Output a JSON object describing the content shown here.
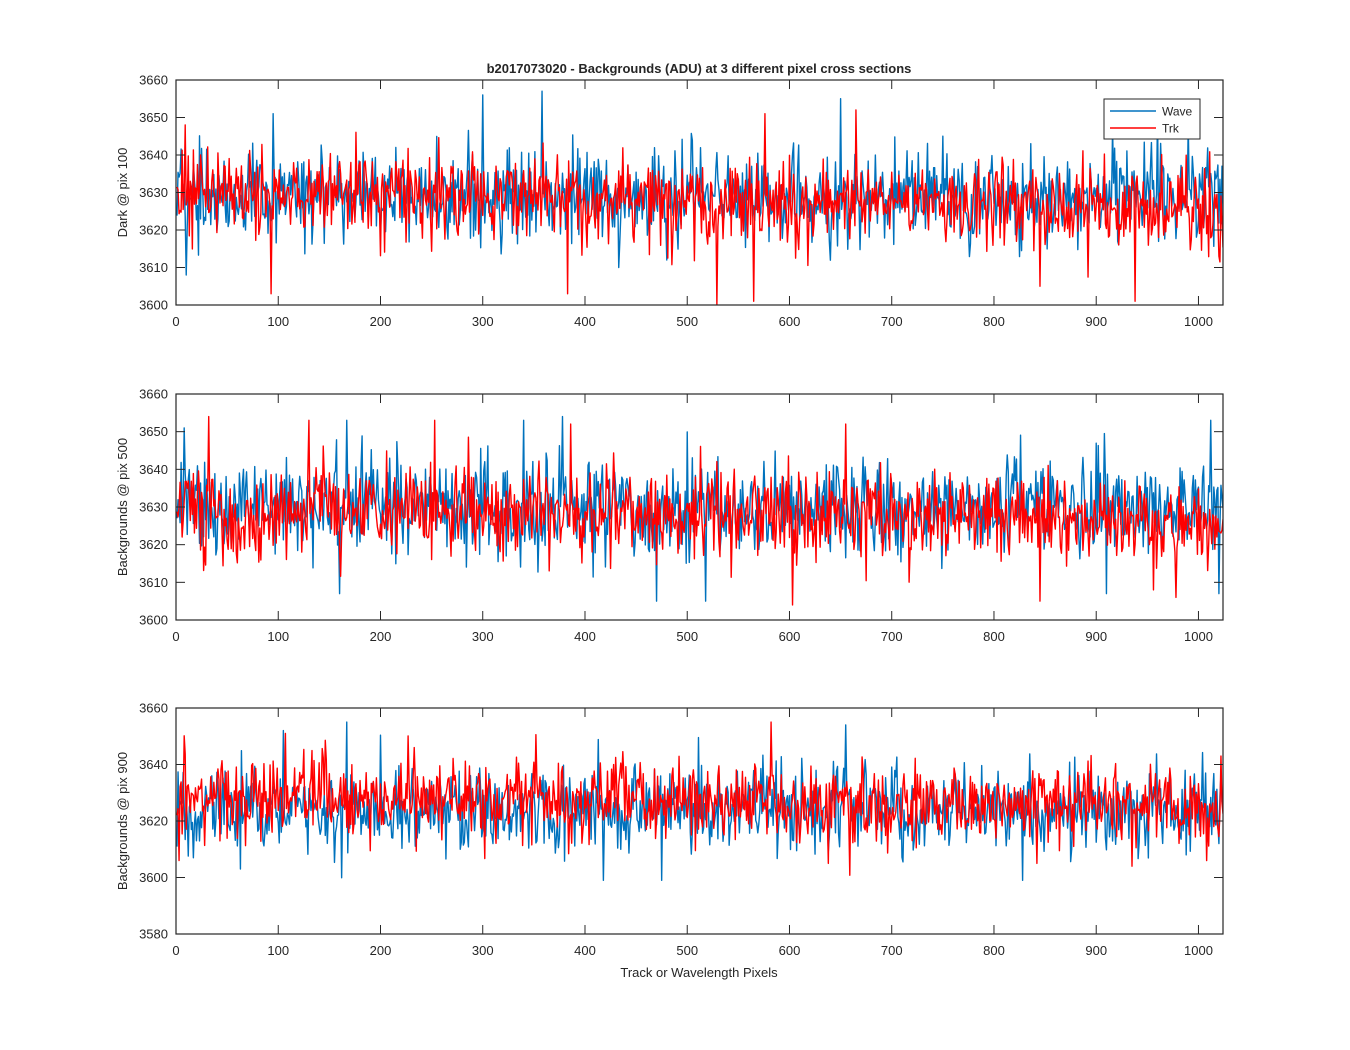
{
  "figure": {
    "title": "b2017073020 - Backgrounds (ADU) at 3 different pixel cross sections",
    "xlabel": "Track or Wavelength Pixels"
  },
  "legend": {
    "placement": "top-right of first panel",
    "entries": [
      {
        "name": "Wave",
        "color": "#0072BD"
      },
      {
        "name": "Trk",
        "color": "#FF0000"
      }
    ]
  },
  "chart_data": [
    {
      "type": "line",
      "ylabel": "Dark @ pix 100",
      "xlim": [
        0,
        1024
      ],
      "ylim": [
        3600,
        3660
      ],
      "xticks": [
        0,
        100,
        200,
        300,
        400,
        500,
        600,
        700,
        800,
        900,
        1000
      ],
      "yticks": [
        3600,
        3610,
        3620,
        3630,
        3640,
        3650,
        3660
      ],
      "x_range": [
        1,
        1024
      ],
      "series": [
        {
          "name": "Wave",
          "color": "#0072BD",
          "mean": 3629,
          "noise_sd": 6.0,
          "extremes": [
            [
              10,
              3608
            ],
            [
              95,
              3651
            ],
            [
              300,
              3656
            ],
            [
              358,
              3657
            ],
            [
              433,
              3610
            ],
            [
              480,
              3612
            ],
            [
              650,
              3655
            ],
            [
              750,
              3645
            ],
            [
              960,
              3652
            ],
            [
              990,
              3648
            ]
          ]
        },
        {
          "name": "Trk",
          "color": "#FF0000",
          "mean": 3630,
          "noise_sd": 5.5,
          "trend_end": -4,
          "extremes": [
            [
              9,
              3648
            ],
            [
              93,
              3603
            ],
            [
              383,
              3603
            ],
            [
              529,
              3600
            ],
            [
              565,
              3601
            ],
            [
              576,
              3651
            ],
            [
              665,
              3652
            ],
            [
              845,
              3605
            ],
            [
              938,
              3601
            ],
            [
              1020,
              3613
            ]
          ]
        }
      ]
    },
    {
      "type": "line",
      "ylabel": "Backgrounds @ pix 500",
      "xlim": [
        0,
        1024
      ],
      "ylim": [
        3600,
        3660
      ],
      "xticks": [
        0,
        100,
        200,
        300,
        400,
        500,
        600,
        700,
        800,
        900,
        1000
      ],
      "yticks": [
        3600,
        3610,
        3620,
        3630,
        3640,
        3650,
        3660
      ],
      "x_range": [
        1,
        1024
      ],
      "series": [
        {
          "name": "Wave",
          "color": "#0072BD",
          "mean": 3630,
          "noise_sd": 6.5,
          "extremes": [
            [
              8,
              3651
            ],
            [
              160,
              3607
            ],
            [
              167,
              3653
            ],
            [
              340,
              3653
            ],
            [
              378,
              3654
            ],
            [
              470,
              3605
            ],
            [
              518,
              3605
            ],
            [
              910,
              3607
            ],
            [
              1012,
              3653
            ],
            [
              1020,
              3607
            ]
          ]
        },
        {
          "name": "Trk",
          "color": "#FF0000",
          "mean": 3629,
          "noise_sd": 6.0,
          "trend_end": -2,
          "extremes": [
            [
              32,
              3654
            ],
            [
              130,
              3653
            ],
            [
              253,
              3653
            ],
            [
              386,
              3652
            ],
            [
              603,
              3604
            ],
            [
              655,
              3652
            ],
            [
              845,
              3605
            ],
            [
              956,
              3608
            ],
            [
              978,
              3606
            ]
          ]
        }
      ]
    },
    {
      "type": "line",
      "ylabel": "Backgrounds @ pix 900",
      "xlim": [
        0,
        1024
      ],
      "ylim": [
        3580,
        3660
      ],
      "xticks": [
        0,
        100,
        200,
        300,
        400,
        500,
        600,
        700,
        800,
        900,
        1000
      ],
      "yticks": [
        3580,
        3600,
        3620,
        3640,
        3660
      ],
      "x_range": [
        1,
        1024
      ],
      "series": [
        {
          "name": "Wave",
          "color": "#0072BD",
          "mean": 3624,
          "noise_sd": 7.5,
          "extremes": [
            [
              63,
              3603
            ],
            [
              105,
              3652
            ],
            [
              167,
              3655
            ],
            [
              418,
              3599
            ],
            [
              475,
              3599
            ],
            [
              655,
              3654
            ],
            [
              828,
              3599
            ],
            [
              1020,
              3612
            ]
          ]
        },
        {
          "name": "Trk",
          "color": "#FF0000",
          "mean": 3629,
          "noise_sd": 7.0,
          "trend_end": -4,
          "extremes": [
            [
              3,
              3606
            ],
            [
              107,
              3651
            ],
            [
              233,
              3646
            ],
            [
              582,
              3655
            ],
            [
              638,
              3605
            ],
            [
              842,
              3605
            ],
            [
              935,
              3604
            ],
            [
              1008,
              3606
            ],
            [
              1022,
              3643
            ]
          ]
        }
      ]
    }
  ]
}
